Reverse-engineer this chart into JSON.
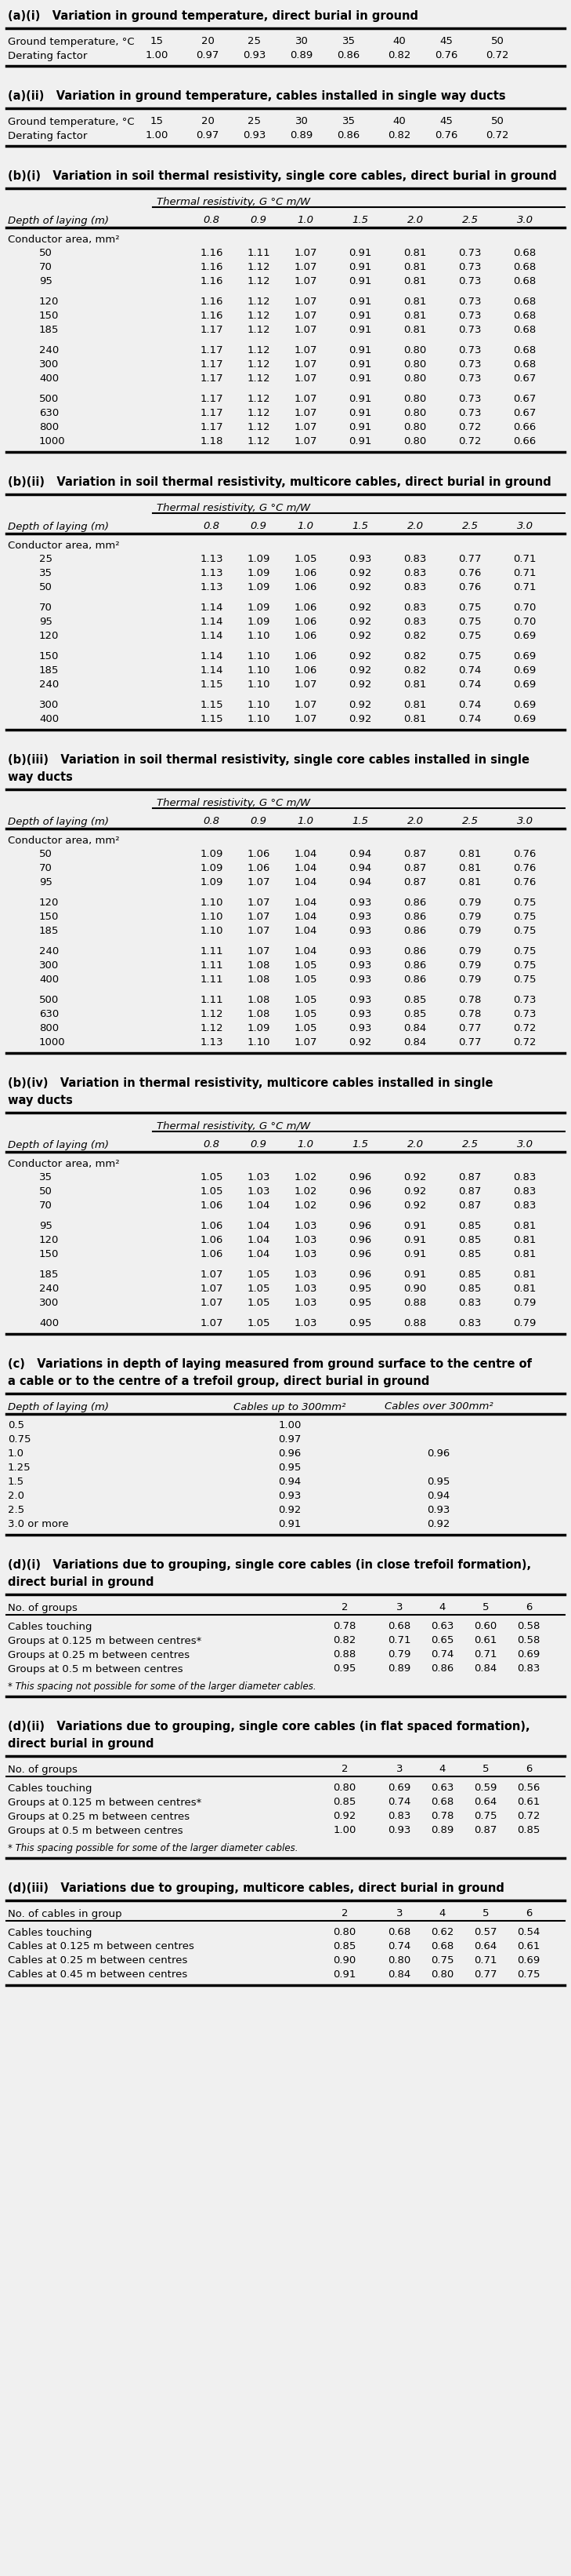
{
  "bg_color": "#f0f0f0",
  "sections": [
    {
      "id": "a_i",
      "title": "(a)(i)   Variation in ground temperature, direct burial in ground",
      "type": "simple_table",
      "row1_label": "Ground temperature, °C",
      "row2_label": "Derating factor",
      "row1_values": [
        "15",
        "20",
        "25",
        "30",
        "35",
        "40",
        "45",
        "50"
      ],
      "row2_values": [
        "1.00",
        "0.97",
        "0.93",
        "0.89",
        "0.86",
        "0.82",
        "0.76",
        "0.72"
      ]
    },
    {
      "id": "a_ii",
      "title": "(a)(ii)   Variation in ground temperature, cables installed in single way ducts",
      "type": "simple_table",
      "row1_label": "Ground temperature, °C",
      "row2_label": "Derating factor",
      "row1_values": [
        "15",
        "20",
        "25",
        "30",
        "35",
        "40",
        "45",
        "50"
      ],
      "row2_values": [
        "1.00",
        "0.97",
        "0.93",
        "0.89",
        "0.86",
        "0.82",
        "0.76",
        "0.72"
      ]
    },
    {
      "id": "b_i",
      "title": "(b)(i)   Variation in soil thermal resistivity, single core cables, direct burial in ground",
      "type": "thermal_table",
      "subheader": "Thermal resistivity, G °C m/W",
      "depth_label": "Depth of laying (m)",
      "depth_cols": [
        "0.8",
        "0.9",
        "1.0",
        "1.5",
        "2.0",
        "2.5",
        "3.0"
      ],
      "conductor_label": "Conductor area, mm²",
      "rows": [
        [
          "50",
          "1.16",
          "1.11",
          "1.07",
          "0.91",
          "0.81",
          "0.73",
          "0.68"
        ],
        [
          "70",
          "1.16",
          "1.12",
          "1.07",
          "0.91",
          "0.81",
          "0.73",
          "0.68"
        ],
        [
          "95",
          "1.16",
          "1.12",
          "1.07",
          "0.91",
          "0.81",
          "0.73",
          "0.68"
        ],
        [
          "120",
          "1.16",
          "1.12",
          "1.07",
          "0.91",
          "0.81",
          "0.73",
          "0.68"
        ],
        [
          "150",
          "1.16",
          "1.12",
          "1.07",
          "0.91",
          "0.81",
          "0.73",
          "0.68"
        ],
        [
          "185",
          "1.17",
          "1.12",
          "1.07",
          "0.91",
          "0.81",
          "0.73",
          "0.68"
        ],
        [
          "240",
          "1.17",
          "1.12",
          "1.07",
          "0.91",
          "0.80",
          "0.73",
          "0.68"
        ],
        [
          "300",
          "1.17",
          "1.12",
          "1.07",
          "0.91",
          "0.80",
          "0.73",
          "0.68"
        ],
        [
          "400",
          "1.17",
          "1.12",
          "1.07",
          "0.91",
          "0.80",
          "0.73",
          "0.67"
        ],
        [
          "500",
          "1.17",
          "1.12",
          "1.07",
          "0.91",
          "0.80",
          "0.73",
          "0.67"
        ],
        [
          "630",
          "1.17",
          "1.12",
          "1.07",
          "0.91",
          "0.80",
          "0.73",
          "0.67"
        ],
        [
          "800",
          "1.17",
          "1.12",
          "1.07",
          "0.91",
          "0.80",
          "0.72",
          "0.66"
        ],
        [
          "1000",
          "1.18",
          "1.12",
          "1.07",
          "0.91",
          "0.80",
          "0.72",
          "0.66"
        ]
      ],
      "group_breaks": [
        3,
        6,
        9
      ]
    },
    {
      "id": "b_ii",
      "title": "(b)(ii)   Variation in soil thermal resistivity, multicore cables, direct burial in ground",
      "type": "thermal_table",
      "subheader": "Thermal resistivity, G °C m/W",
      "depth_label": "Depth of laying (m)",
      "depth_cols": [
        "0.8",
        "0.9",
        "1.0",
        "1.5",
        "2.0",
        "2.5",
        "3.0"
      ],
      "conductor_label": "Conductor area, mm²",
      "rows": [
        [
          "25",
          "1.13",
          "1.09",
          "1.05",
          "0.93",
          "0.83",
          "0.77",
          "0.71"
        ],
        [
          "35",
          "1.13",
          "1.09",
          "1.06",
          "0.92",
          "0.83",
          "0.76",
          "0.71"
        ],
        [
          "50",
          "1.13",
          "1.09",
          "1.06",
          "0.92",
          "0.83",
          "0.76",
          "0.71"
        ],
        [
          "70",
          "1.14",
          "1.09",
          "1.06",
          "0.92",
          "0.83",
          "0.75",
          "0.70"
        ],
        [
          "95",
          "1.14",
          "1.09",
          "1.06",
          "0.92",
          "0.83",
          "0.75",
          "0.70"
        ],
        [
          "120",
          "1.14",
          "1.10",
          "1.06",
          "0.92",
          "0.82",
          "0.75",
          "0.69"
        ],
        [
          "150",
          "1.14",
          "1.10",
          "1.06",
          "0.92",
          "0.82",
          "0.75",
          "0.69"
        ],
        [
          "185",
          "1.14",
          "1.10",
          "1.06",
          "0.92",
          "0.82",
          "0.74",
          "0.69"
        ],
        [
          "240",
          "1.15",
          "1.10",
          "1.07",
          "0.92",
          "0.81",
          "0.74",
          "0.69"
        ],
        [
          "300",
          "1.15",
          "1.10",
          "1.07",
          "0.92",
          "0.81",
          "0.74",
          "0.69"
        ],
        [
          "400",
          "1.15",
          "1.10",
          "1.07",
          "0.92",
          "0.81",
          "0.74",
          "0.69"
        ]
      ],
      "group_breaks": [
        3,
        6,
        9
      ]
    },
    {
      "id": "b_iii",
      "title": "(b)(iii)   Variation in soil thermal resistivity, single core cables installed in single\nway ducts",
      "type": "thermal_table",
      "subheader": "Thermal resistivity, G °C m/W",
      "depth_label": "Depth of laying (m)",
      "depth_cols": [
        "0.8",
        "0.9",
        "1.0",
        "1.5",
        "2.0",
        "2.5",
        "3.0"
      ],
      "conductor_label": "Conductor area, mm²",
      "rows": [
        [
          "50",
          "1.09",
          "1.06",
          "1.04",
          "0.94",
          "0.87",
          "0.81",
          "0.76"
        ],
        [
          "70",
          "1.09",
          "1.06",
          "1.04",
          "0.94",
          "0.87",
          "0.81",
          "0.76"
        ],
        [
          "95",
          "1.09",
          "1.07",
          "1.04",
          "0.94",
          "0.87",
          "0.81",
          "0.76"
        ],
        [
          "120",
          "1.10",
          "1.07",
          "1.04",
          "0.93",
          "0.86",
          "0.79",
          "0.75"
        ],
        [
          "150",
          "1.10",
          "1.07",
          "1.04",
          "0.93",
          "0.86",
          "0.79",
          "0.75"
        ],
        [
          "185",
          "1.10",
          "1.07",
          "1.04",
          "0.93",
          "0.86",
          "0.79",
          "0.75"
        ],
        [
          "240",
          "1.11",
          "1.07",
          "1.04",
          "0.93",
          "0.86",
          "0.79",
          "0.75"
        ],
        [
          "300",
          "1.11",
          "1.08",
          "1.05",
          "0.93",
          "0.86",
          "0.79",
          "0.75"
        ],
        [
          "400",
          "1.11",
          "1.08",
          "1.05",
          "0.93",
          "0.86",
          "0.79",
          "0.75"
        ],
        [
          "500",
          "1.11",
          "1.08",
          "1.05",
          "0.93",
          "0.85",
          "0.78",
          "0.73"
        ],
        [
          "630",
          "1.12",
          "1.08",
          "1.05",
          "0.93",
          "0.85",
          "0.78",
          "0.73"
        ],
        [
          "800",
          "1.12",
          "1.09",
          "1.05",
          "0.93",
          "0.84",
          "0.77",
          "0.72"
        ],
        [
          "1000",
          "1.13",
          "1.10",
          "1.07",
          "0.92",
          "0.84",
          "0.77",
          "0.72"
        ]
      ],
      "group_breaks": [
        3,
        6,
        9
      ]
    },
    {
      "id": "b_iv",
      "title": "(b)(iv)   Variation in thermal resistivity, multicore cables installed in single\nway ducts",
      "type": "thermal_table",
      "subheader": "Thermal resistivity, G °C m/W",
      "depth_label": "Depth of laying (m)",
      "depth_cols": [
        "0.8",
        "0.9",
        "1.0",
        "1.5",
        "2.0",
        "2.5",
        "3.0"
      ],
      "conductor_label": "Conductor area, mm²",
      "rows": [
        [
          "35",
          "1.05",
          "1.03",
          "1.02",
          "0.96",
          "0.92",
          "0.87",
          "0.83"
        ],
        [
          "50",
          "1.05",
          "1.03",
          "1.02",
          "0.96",
          "0.92",
          "0.87",
          "0.83"
        ],
        [
          "70",
          "1.06",
          "1.04",
          "1.02",
          "0.96",
          "0.92",
          "0.87",
          "0.83"
        ],
        [
          "95",
          "1.06",
          "1.04",
          "1.03",
          "0.96",
          "0.91",
          "0.85",
          "0.81"
        ],
        [
          "120",
          "1.06",
          "1.04",
          "1.03",
          "0.96",
          "0.91",
          "0.85",
          "0.81"
        ],
        [
          "150",
          "1.06",
          "1.04",
          "1.03",
          "0.96",
          "0.91",
          "0.85",
          "0.81"
        ],
        [
          "185",
          "1.07",
          "1.05",
          "1.03",
          "0.96",
          "0.91",
          "0.85",
          "0.81"
        ],
        [
          "240",
          "1.07",
          "1.05",
          "1.03",
          "0.95",
          "0.90",
          "0.85",
          "0.81"
        ],
        [
          "300",
          "1.07",
          "1.05",
          "1.03",
          "0.95",
          "0.88",
          "0.83",
          "0.79"
        ],
        [
          "400",
          "1.07",
          "1.05",
          "1.03",
          "0.95",
          "0.88",
          "0.83",
          "0.79"
        ]
      ],
      "group_breaks": [
        3,
        6,
        9
      ]
    },
    {
      "id": "c",
      "title": "(c)   Variations in depth of laying measured from ground surface to the centre of\na cable or to the centre of a trefoil group, direct burial in ground",
      "type": "depth_table",
      "depth_label": "Depth of laying (m)",
      "col1_label": "Cables up to 300mm²",
      "col2_label": "Cables over 300mm²",
      "rows": [
        [
          "0.5",
          "1.00",
          ""
        ],
        [
          "0.75",
          "0.97",
          ""
        ],
        [
          "1.0",
          "0.96",
          "0.96"
        ],
        [
          "1.25",
          "0.95",
          ""
        ],
        [
          "1.5",
          "0.94",
          "0.95"
        ],
        [
          "2.0",
          "0.93",
          "0.94"
        ],
        [
          "2.5",
          "0.92",
          "0.93"
        ],
        [
          "3.0 or more",
          "0.91",
          "0.92"
        ]
      ]
    },
    {
      "id": "d_i",
      "title": "(d)(i)   Variations due to grouping, single core cables (in close trefoil formation),\ndirect burial in ground",
      "type": "grouping_table",
      "note": "* This spacing not possible for some of the larger diameter cables.",
      "no_of_groups_label": "No. of groups",
      "col_headers": [
        "2",
        "3",
        "4",
        "5",
        "6"
      ],
      "rows": [
        [
          "Cables touching",
          "0.78",
          "0.68",
          "0.63",
          "0.60",
          "0.58"
        ],
        [
          "Groups at 0.125 m between centres*",
          "0.82",
          "0.71",
          "0.65",
          "0.61",
          "0.58"
        ],
        [
          "Groups at 0.25 m between centres",
          "0.88",
          "0.79",
          "0.74",
          "0.71",
          "0.69"
        ],
        [
          "Groups at 0.5 m between centres",
          "0.95",
          "0.89",
          "0.86",
          "0.84",
          "0.83"
        ]
      ]
    },
    {
      "id": "d_ii",
      "title": "(d)(ii)   Variations due to grouping, single core cables (in flat spaced formation),\ndirect burial in ground",
      "type": "grouping_table",
      "note": "* This spacing possible for some of the larger diameter cables.",
      "no_of_groups_label": "No. of groups",
      "col_headers": [
        "2",
        "3",
        "4",
        "5",
        "6"
      ],
      "rows": [
        [
          "Cables touching",
          "0.80",
          "0.69",
          "0.63",
          "0.59",
          "0.56"
        ],
        [
          "Groups at 0.125 m between centres*",
          "0.85",
          "0.74",
          "0.68",
          "0.64",
          "0.61"
        ],
        [
          "Groups at 0.25 m between centres",
          "0.92",
          "0.83",
          "0.78",
          "0.75",
          "0.72"
        ],
        [
          "Groups at 0.5 m between centres",
          "1.00",
          "0.93",
          "0.89",
          "0.87",
          "0.85"
        ]
      ]
    },
    {
      "id": "d_iii",
      "title": "(d)(iii)   Variations due to grouping, multicore cables, direct burial in ground",
      "type": "grouping_table_mc",
      "no_of_groups_label": "No. of cables in group",
      "col_headers": [
        "2",
        "3",
        "4",
        "5",
        "6"
      ],
      "rows": [
        [
          "Cables touching",
          "0.80",
          "0.68",
          "0.62",
          "0.57",
          "0.54"
        ],
        [
          "Cables at 0.125 m between centres",
          "0.85",
          "0.74",
          "0.68",
          "0.64",
          "0.61"
        ],
        [
          "Cables at 0.25 m between centres",
          "0.90",
          "0.80",
          "0.75",
          "0.71",
          "0.69"
        ],
        [
          "Cables at 0.45 m between centres",
          "0.91",
          "0.84",
          "0.80",
          "0.77",
          "0.75"
        ]
      ]
    }
  ]
}
